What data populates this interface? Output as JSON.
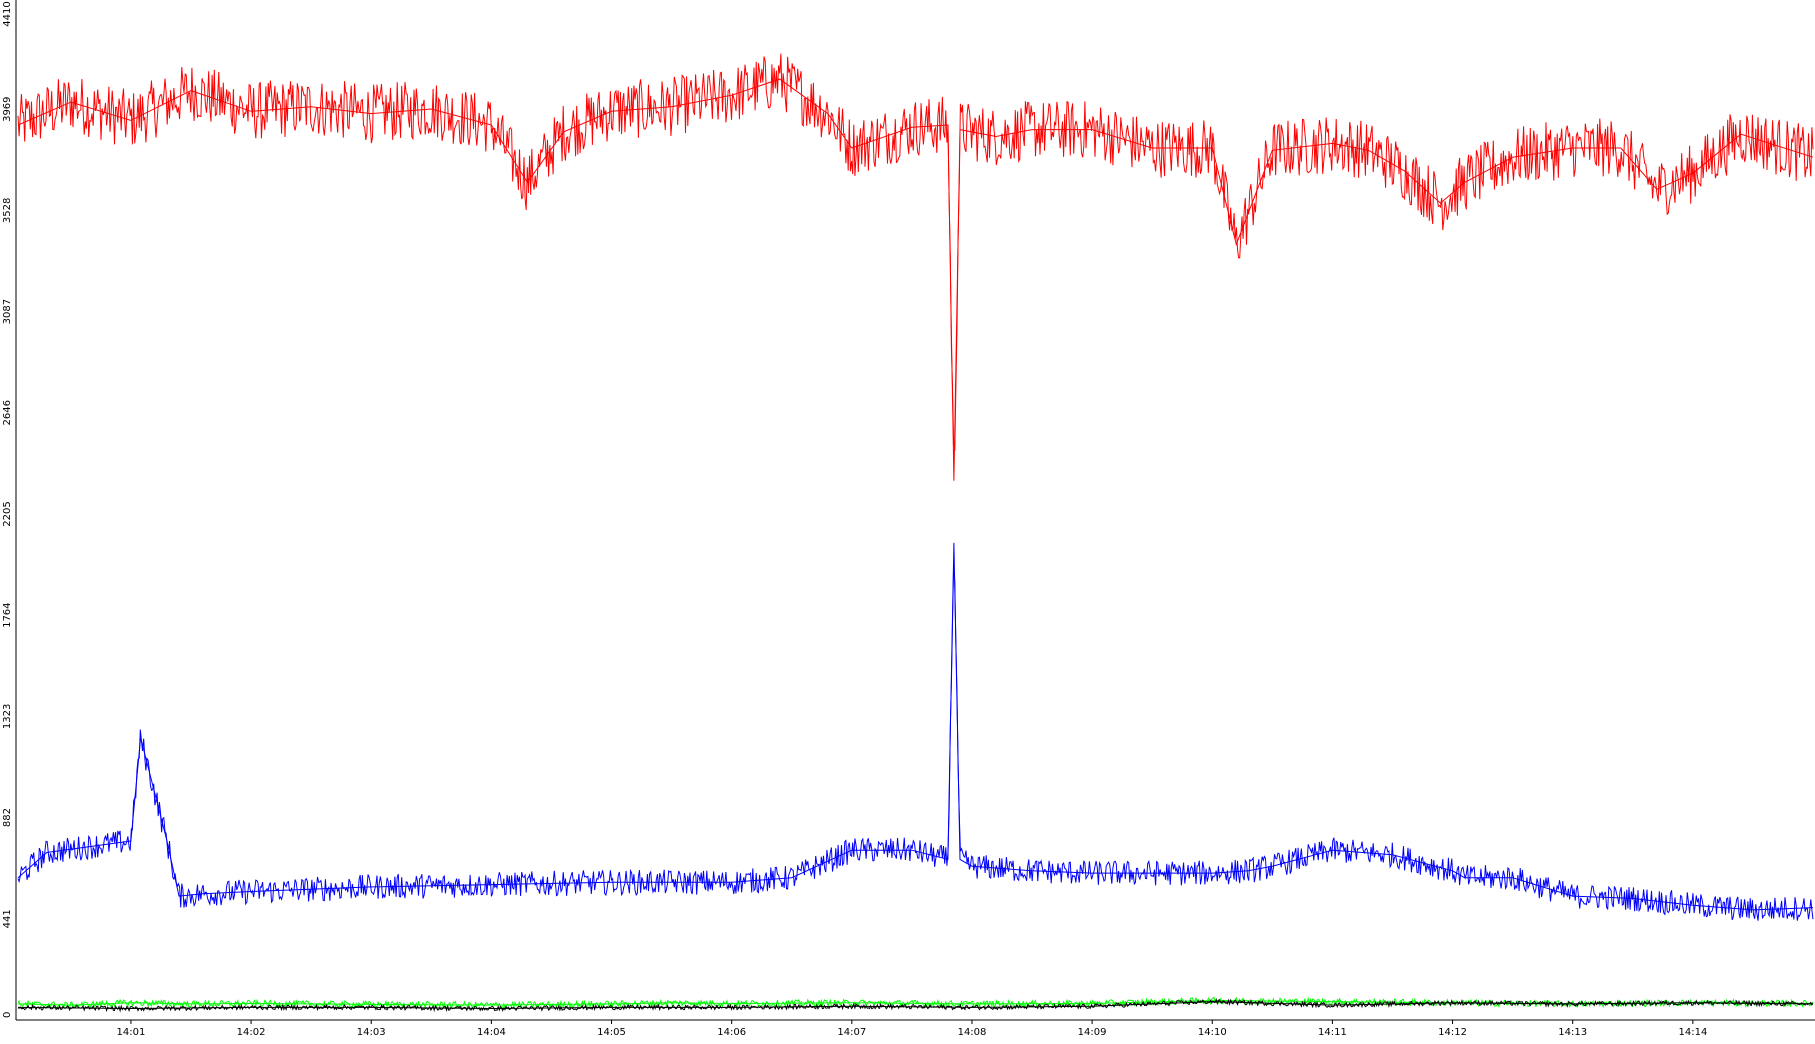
{
  "chart_data": {
    "type": "line",
    "title": "",
    "xlabel": "",
    "ylabel": "",
    "ylim": [
      0,
      4410
    ],
    "y_ticks": [
      "0",
      "441",
      "882",
      "1323",
      "1764",
      "2205",
      "2646",
      "3087",
      "3528",
      "3969",
      "4410"
    ],
    "x_tick_labels": [
      "14:01",
      "14:02",
      "14:03",
      "14:04",
      "14:05",
      "14:06",
      "14:07",
      "14:08",
      "14:09",
      "14:10",
      "14:11",
      "14:12",
      "14:13",
      "14:14"
    ],
    "x_range_minutes": [
      0.06,
      15.0
    ],
    "x_tick_positions_minutes": [
      1,
      2,
      3,
      4,
      5,
      6,
      7,
      8,
      9,
      10,
      11,
      12,
      13,
      14
    ],
    "grid": false,
    "legend": "none",
    "series": [
      {
        "color": "#ff0000",
        "x": [
          0.06,
          0.5,
          1.0,
          1.5,
          2.0,
          2.5,
          3.0,
          3.5,
          4.0,
          4.3,
          4.6,
          5.0,
          5.5,
          6.0,
          6.4,
          6.8,
          7.0,
          7.5,
          7.8,
          7.85,
          7.9,
          8.2,
          8.5,
          9.0,
          9.5,
          10.0,
          10.2,
          10.5,
          11.0,
          11.3,
          11.6,
          11.9,
          12.1,
          12.5,
          13.0,
          13.4,
          13.7,
          14.0,
          14.4,
          15.0
        ],
        "values": [
          3900,
          4000,
          3920,
          4050,
          3960,
          3980,
          3950,
          3970,
          3900,
          3650,
          3870,
          3960,
          3980,
          4030,
          4100,
          3950,
          3800,
          3890,
          3900,
          2350,
          3880,
          3850,
          3880,
          3880,
          3800,
          3800,
          3380,
          3790,
          3820,
          3790,
          3700,
          3560,
          3650,
          3760,
          3800,
          3800,
          3620,
          3690,
          3860,
          3760
        ]
      },
      {
        "color": "#0000ff",
        "x": [
          0.06,
          0.3,
          1.0,
          1.08,
          1.3,
          1.4,
          1.6,
          2.0,
          3.0,
          4.0,
          5.0,
          6.0,
          6.5,
          7.0,
          7.5,
          7.8,
          7.85,
          7.9,
          8.0,
          8.5,
          9.0,
          10.0,
          10.3,
          10.5,
          11.0,
          11.5,
          12.0,
          12.1,
          12.5,
          13.0,
          13.5,
          14.0,
          14.5,
          15.0
        ],
        "values": [
          620,
          730,
          780,
          1230,
          780,
          540,
          550,
          560,
          580,
          590,
          600,
          600,
          620,
          740,
          740,
          700,
          2080,
          700,
          670,
          650,
          640,
          640,
          650,
          670,
          740,
          720,
          650,
          620,
          620,
          540,
          530,
          500,
          480,
          490
        ]
      },
      {
        "color": "#00ff00",
        "x": [
          0.06,
          0.5,
          1.0,
          1.5,
          2.0,
          3.0,
          4.0,
          5.0,
          5.5,
          6.0,
          7.0,
          8.0,
          9.0,
          10.0,
          11.0,
          12.0,
          13.0,
          14.0,
          15.0
        ],
        "values": [
          70,
          65,
          75,
          70,
          72,
          68,
          65,
          70,
          75,
          72,
          75,
          70,
          72,
          85,
          80,
          75,
          70,
          75,
          72
        ]
      },
      {
        "color": "#000000",
        "x": [
          0.06,
          1.0,
          2.0,
          3.0,
          4.0,
          5.0,
          6.0,
          7.0,
          8.0,
          9.0,
          10.0,
          11.0,
          12.0,
          13.0,
          14.0,
          15.0
        ],
        "values": [
          55,
          50,
          55,
          55,
          50,
          55,
          55,
          60,
          55,
          60,
          80,
          65,
          75,
          70,
          75,
          70
        ]
      }
    ]
  }
}
